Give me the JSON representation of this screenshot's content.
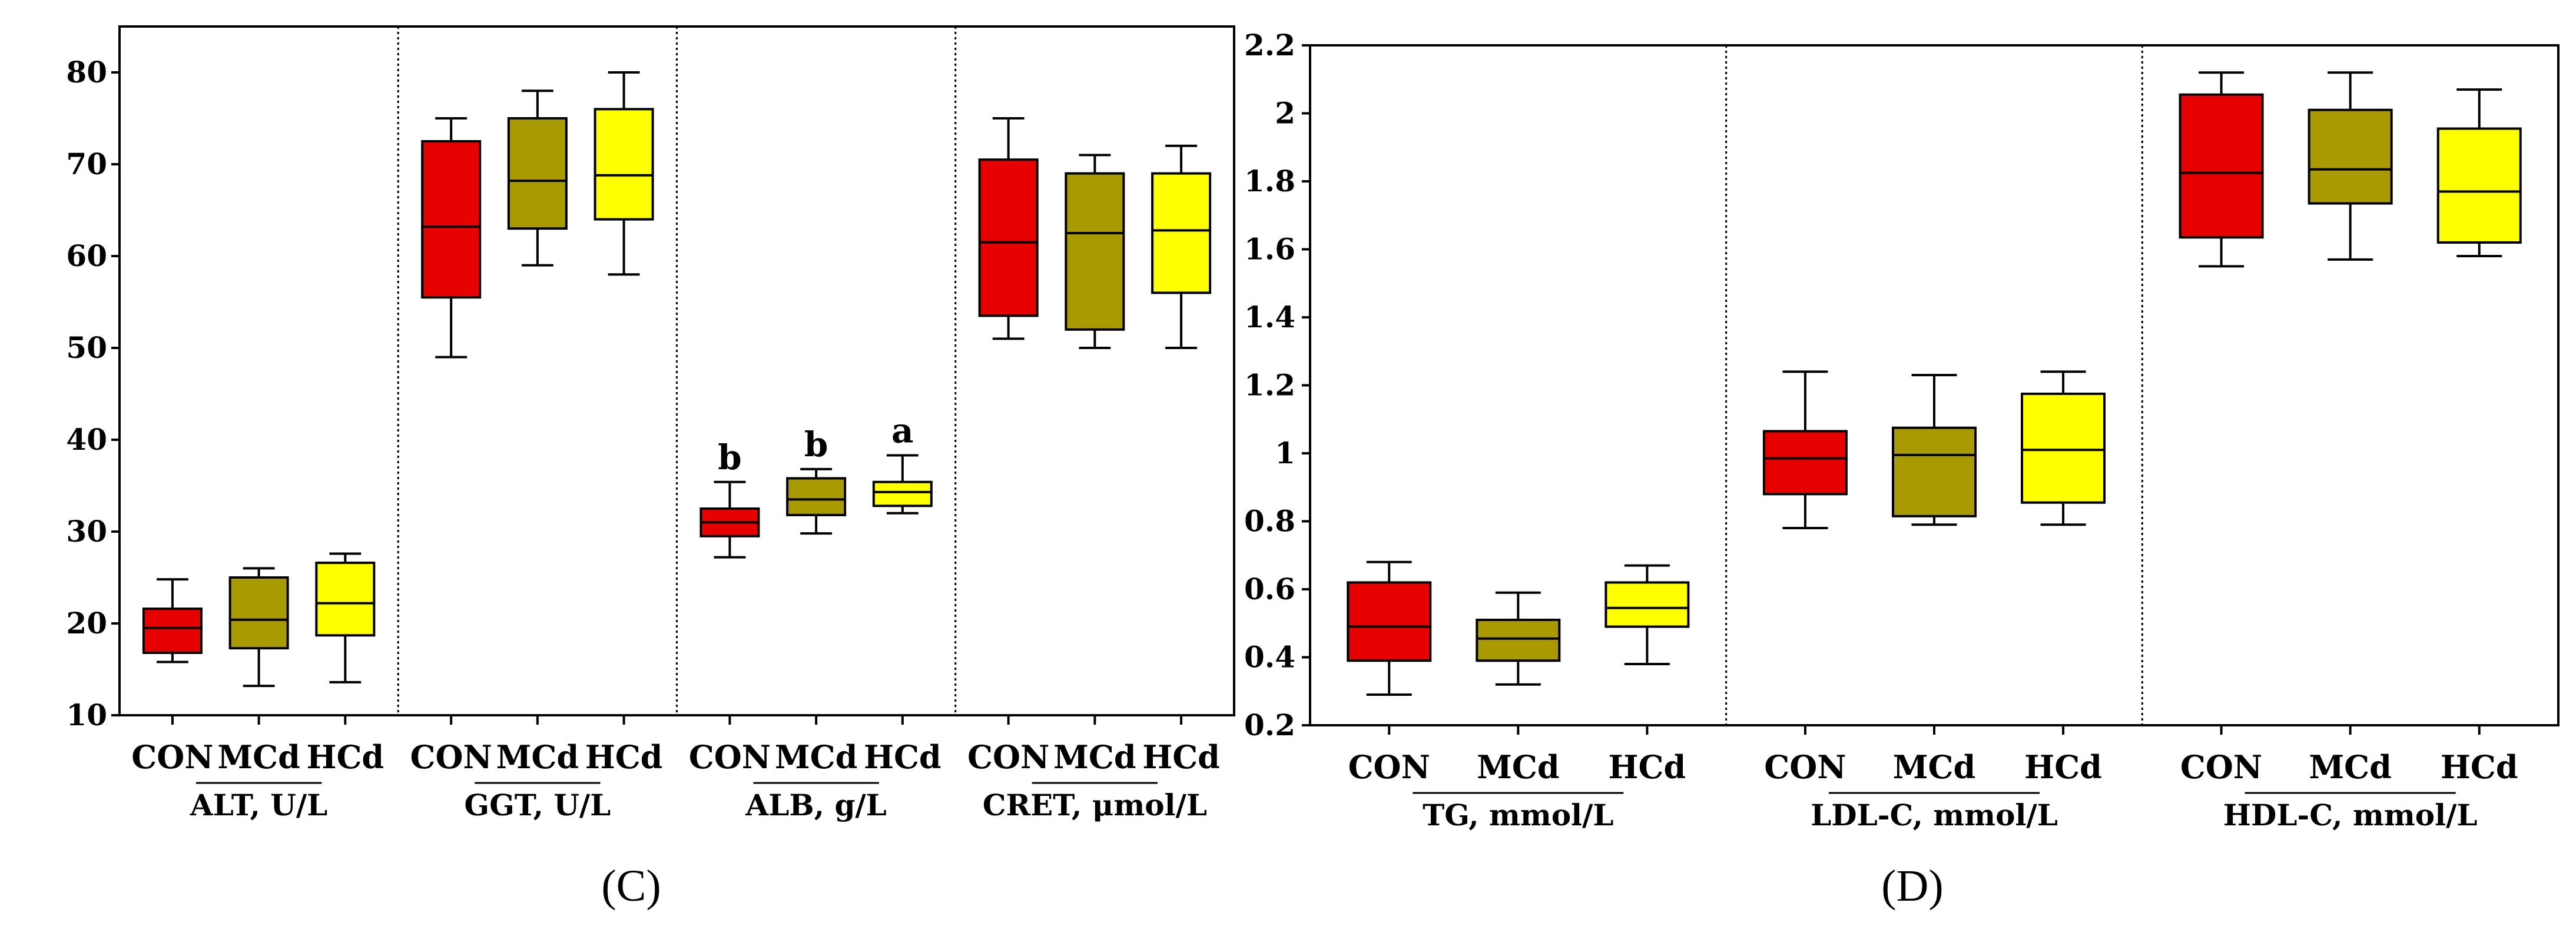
{
  "colors": {
    "CON": "#e60000",
    "MCd": "#a89a00",
    "HCd": "#ffff00"
  },
  "chart_data": [
    {
      "type": "boxplot",
      "panel_label": "(C)",
      "ylim": [
        10,
        85
      ],
      "yticks": [
        10,
        20,
        30,
        40,
        50,
        60,
        70,
        80
      ],
      "ytick_labels": [
        "10",
        "20",
        "30",
        "40",
        "50",
        "60",
        "70",
        "80"
      ],
      "categories": [
        "CON",
        "MCd",
        "HCd"
      ],
      "groups": [
        {
          "name": "ALT, U/L",
          "boxes": [
            {
              "category": "CON",
              "whisker_low": 15.8,
              "q1": 16.8,
              "median": 19.5,
              "q3": 21.6,
              "whisker_high": 24.8,
              "sig": ""
            },
            {
              "category": "MCd",
              "whisker_low": 13.2,
              "q1": 17.3,
              "median": 20.4,
              "q3": 25.0,
              "whisker_high": 26.0,
              "sig": ""
            },
            {
              "category": "HCd",
              "whisker_low": 13.6,
              "q1": 18.7,
              "median": 22.2,
              "q3": 26.6,
              "whisker_high": 27.6,
              "sig": ""
            }
          ]
        },
        {
          "name": "GGT, U/L",
          "boxes": [
            {
              "category": "CON",
              "whisker_low": 49.0,
              "q1": 55.5,
              "median": 63.2,
              "q3": 72.5,
              "whisker_high": 75.0,
              "sig": ""
            },
            {
              "category": "MCd",
              "whisker_low": 59.0,
              "q1": 63.0,
              "median": 68.2,
              "q3": 75.0,
              "whisker_high": 78.0,
              "sig": ""
            },
            {
              "category": "HCd",
              "whisker_low": 58.0,
              "q1": 64.0,
              "median": 68.8,
              "q3": 76.0,
              "whisker_high": 80.0,
              "sig": ""
            }
          ]
        },
        {
          "name": "ALB, g/L",
          "boxes": [
            {
              "category": "CON",
              "whisker_low": 27.2,
              "q1": 29.5,
              "median": 31.0,
              "q3": 32.5,
              "whisker_high": 35.4,
              "sig": "b"
            },
            {
              "category": "MCd",
              "whisker_low": 29.8,
              "q1": 31.8,
              "median": 33.5,
              "q3": 35.8,
              "whisker_high": 36.8,
              "sig": "b"
            },
            {
              "category": "HCd",
              "whisker_low": 32.0,
              "q1": 32.8,
              "median": 34.3,
              "q3": 35.4,
              "whisker_high": 38.3,
              "sig": "a"
            }
          ]
        },
        {
          "name": "CRET, μmol/L",
          "boxes": [
            {
              "category": "CON",
              "whisker_low": 51.0,
              "q1": 53.5,
              "median": 61.5,
              "q3": 70.5,
              "whisker_high": 75.0,
              "sig": ""
            },
            {
              "category": "MCd",
              "whisker_low": 50.0,
              "q1": 52.0,
              "median": 62.5,
              "q3": 69.0,
              "whisker_high": 71.0,
              "sig": ""
            },
            {
              "category": "HCd",
              "whisker_low": 50.0,
              "q1": 56.0,
              "median": 62.8,
              "q3": 69.0,
              "whisker_high": 72.0,
              "sig": ""
            }
          ]
        }
      ]
    },
    {
      "type": "boxplot",
      "panel_label": "(D)",
      "ylim": [
        0.2,
        2.2
      ],
      "yticks": [
        0.2,
        0.4,
        0.6,
        0.8,
        1.0,
        1.2,
        1.4,
        1.6,
        1.8,
        2.0,
        2.2
      ],
      "ytick_labels": [
        "0.2",
        "0.4",
        "0.6",
        "0.8",
        "1",
        "1.2",
        "1.4",
        "1.6",
        "1.8",
        "2",
        "2.2"
      ],
      "categories": [
        "CON",
        "MCd",
        "HCd"
      ],
      "groups": [
        {
          "name": "TG, mmol/L",
          "boxes": [
            {
              "category": "CON",
              "whisker_low": 0.29,
              "q1": 0.39,
              "median": 0.49,
              "q3": 0.62,
              "whisker_high": 0.68,
              "sig": ""
            },
            {
              "category": "MCd",
              "whisker_low": 0.32,
              "q1": 0.39,
              "median": 0.455,
              "q3": 0.51,
              "whisker_high": 0.59,
              "sig": ""
            },
            {
              "category": "HCd",
              "whisker_low": 0.38,
              "q1": 0.49,
              "median": 0.545,
              "q3": 0.62,
              "whisker_high": 0.67,
              "sig": ""
            }
          ]
        },
        {
          "name": "LDL-C, mmol/L",
          "boxes": [
            {
              "category": "CON",
              "whisker_low": 0.78,
              "q1": 0.88,
              "median": 0.985,
              "q3": 1.065,
              "whisker_high": 1.24,
              "sig": ""
            },
            {
              "category": "MCd",
              "whisker_low": 0.79,
              "q1": 0.815,
              "median": 0.995,
              "q3": 1.075,
              "whisker_high": 1.23,
              "sig": ""
            },
            {
              "category": "HCd",
              "whisker_low": 0.79,
              "q1": 0.855,
              "median": 1.01,
              "q3": 1.175,
              "whisker_high": 1.24,
              "sig": ""
            }
          ]
        },
        {
          "name": "HDL-C, mmol/L",
          "boxes": [
            {
              "category": "CON",
              "whisker_low": 1.55,
              "q1": 1.635,
              "median": 1.825,
              "q3": 2.055,
              "whisker_high": 2.12,
              "sig": ""
            },
            {
              "category": "MCd",
              "whisker_low": 1.57,
              "q1": 1.735,
              "median": 1.835,
              "q3": 2.01,
              "whisker_high": 2.12,
              "sig": ""
            },
            {
              "category": "HCd",
              "whisker_low": 1.58,
              "q1": 1.62,
              "median": 1.77,
              "q3": 1.955,
              "whisker_high": 2.07,
              "sig": ""
            }
          ]
        }
      ]
    }
  ]
}
